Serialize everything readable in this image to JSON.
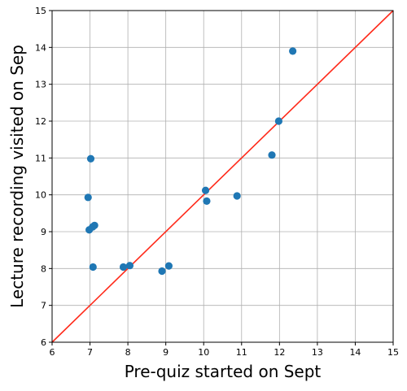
{
  "chart_data": {
    "type": "scatter",
    "xlabel": "Pre-quiz started on Sept",
    "ylabel": "Lecture recording visited on Sep",
    "xlim": [
      6,
      15
    ],
    "ylim": [
      6,
      15
    ],
    "xticks": [
      "6",
      "7",
      "8",
      "9",
      "10",
      "11",
      "12",
      "13",
      "14",
      "15"
    ],
    "yticks": [
      "6",
      "7",
      "8",
      "9",
      "10",
      "11",
      "12",
      "13",
      "14",
      "15"
    ],
    "grid": true,
    "points": [
      {
        "x": 12.35,
        "y": 13.9
      },
      {
        "x": 11.98,
        "y": 12.0
      },
      {
        "x": 11.8,
        "y": 11.08
      },
      {
        "x": 7.02,
        "y": 10.98
      },
      {
        "x": 10.05,
        "y": 10.12
      },
      {
        "x": 10.88,
        "y": 9.97
      },
      {
        "x": 6.95,
        "y": 9.93
      },
      {
        "x": 10.08,
        "y": 9.83
      },
      {
        "x": 7.12,
        "y": 9.17
      },
      {
        "x": 7.07,
        "y": 9.13
      },
      {
        "x": 6.98,
        "y": 9.05
      },
      {
        "x": 7.08,
        "y": 8.04
      },
      {
        "x": 7.88,
        "y": 8.04
      },
      {
        "x": 8.05,
        "y": 8.08
      },
      {
        "x": 9.08,
        "y": 8.07
      },
      {
        "x": 8.9,
        "y": 7.93
      }
    ],
    "reference_line": {
      "from": [
        6,
        6
      ],
      "to": [
        15,
        15
      ],
      "color": "#ff2a1a"
    },
    "marker_color": "#1f77b4"
  }
}
